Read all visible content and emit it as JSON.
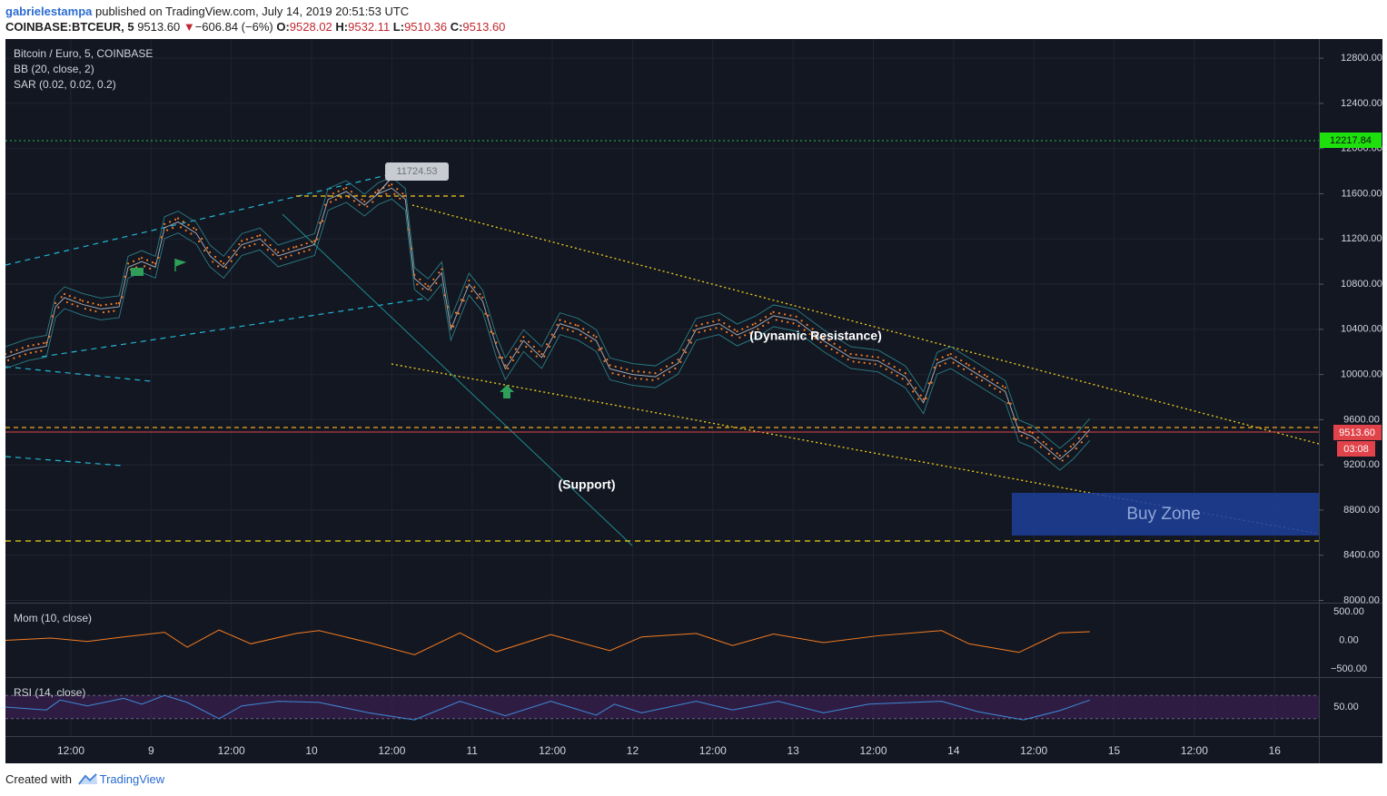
{
  "header": {
    "author": "gabrielestampa",
    "published_text": " published on TradingView.com, July 14, 2019 20:51:53 UTC",
    "symbol": "COINBASE:BTCEUR, 5",
    "last_price": "9513.60",
    "change_arrow": "▼",
    "change": "−606.84 (−6%)",
    "o_label": "O:",
    "o_value": "9528.02",
    "h_label": "H:",
    "h_value": "9532.11",
    "l_label": "L:",
    "l_value": "9510.36",
    "c_label": "C:",
    "c_value": "9513.60"
  },
  "legend": {
    "instrument": "Bitcoin / Euro, 5, COINBASE",
    "bb": "BB (20, close, 2)",
    "sar": "SAR (0.02, 0.02, 0.2)",
    "mom": "Mom (10, close)",
    "rsi": "RSI (14, close)"
  },
  "annotations": {
    "high_callout": "11724.53",
    "dynamic_resistance": "(Dynamic Resistance)",
    "support": "(Support)",
    "buy_zone": "Buy Zone"
  },
  "price_tags": {
    "green_level": "12217.84",
    "current": "9513.60",
    "countdown": "03:08"
  },
  "footer": {
    "created_with": "Created with",
    "brand": "TradingView"
  },
  "colors": {
    "background": "#131722",
    "orange": "#f57c20",
    "yellow": "#f2d218",
    "cyan": "#22b8d4",
    "green_tag": "#1de00d",
    "red_tag": "#e0444a",
    "buy_zone": "#1f3f9a",
    "rsi_band": "#3a1f4f",
    "rsi_line": "#3d8bd6"
  },
  "chart_data": {
    "type": "line",
    "x_tick_labels": [
      "12:00",
      "9",
      "12:00",
      "10",
      "12:00",
      "11",
      "12:00",
      "12",
      "12:00",
      "13",
      "12:00",
      "14",
      "12:00",
      "15",
      "12:00",
      "16"
    ],
    "price_axis_labels": [
      "12800.00",
      "12400.00",
      "12000.00",
      "11600.00",
      "11200.00",
      "10800.00",
      "10400.00",
      "10000.00",
      "9600.00",
      "9200.00",
      "8800.00",
      "8400.00",
      "8000.00"
    ],
    "ylim": [
      7980,
      12970
    ],
    "x_range": [
      0,
      1445
    ],
    "price_series": {
      "x": [
        0,
        25,
        45,
        55,
        65,
        85,
        105,
        125,
        135,
        150,
        165,
        175,
        190,
        210,
        225,
        240,
        260,
        280,
        300,
        320,
        340,
        355,
        375,
        395,
        410,
        425,
        440,
        450,
        465,
        480,
        490,
        510,
        525,
        540,
        550,
        570,
        590,
        610,
        630,
        650,
        665,
        690,
        715,
        740,
        760,
        785,
        805,
        825,
        845,
        870,
        900,
        930,
        960,
        990,
        1010,
        1025,
        1040,
        1060,
        1080,
        1100,
        1115,
        1130,
        1145,
        1160,
        1175,
        1193
      ],
      "y": [
        10150,
        10220,
        10250,
        10600,
        10680,
        10620,
        10580,
        10600,
        10950,
        11000,
        10950,
        11300,
        11350,
        11250,
        11050,
        10950,
        11150,
        11200,
        11050,
        11100,
        11150,
        11550,
        11620,
        11500,
        11600,
        11650,
        11550,
        10850,
        10750,
        10900,
        10400,
        10800,
        10650,
        10250,
        10050,
        10300,
        10150,
        10450,
        10400,
        10300,
        10050,
        10000,
        9980,
        10100,
        10400,
        10450,
        10350,
        10420,
        10520,
        10480,
        10300,
        10150,
        10120,
        9980,
        9750,
        10100,
        10150,
        10050,
        9950,
        9850,
        9500,
        9450,
        9350,
        9250,
        9350,
        9513.6
      ]
    },
    "momentum_axis_labels": [
      "500.00",
      "0.00",
      "−500.00"
    ],
    "momentum_ylim": [
      -640,
      640
    ],
    "momentum_series": {
      "x": [
        0,
        50,
        90,
        130,
        175,
        200,
        235,
        270,
        320,
        345,
        400,
        450,
        500,
        540,
        600,
        665,
        700,
        760,
        800,
        845,
        900,
        960,
        1030,
        1060,
        1115,
        1160,
        1193
      ],
      "y": [
        0,
        40,
        -20,
        60,
        140,
        -120,
        180,
        -60,
        120,
        170,
        -40,
        -250,
        130,
        -200,
        100,
        -180,
        60,
        120,
        -90,
        110,
        -40,
        80,
        170,
        -60,
        -210,
        130,
        150
      ]
    },
    "rsi_axis_labels": [
      "50.00"
    ],
    "rsi_ylim": [
      0,
      100
    ],
    "rsi_band": [
      30,
      70
    ],
    "rsi_series": {
      "x": [
        0,
        45,
        60,
        90,
        130,
        150,
        175,
        200,
        235,
        260,
        300,
        345,
        400,
        450,
        500,
        550,
        600,
        650,
        670,
        700,
        760,
        800,
        850,
        900,
        950,
        1030,
        1070,
        1120,
        1160,
        1193
      ],
      "y": [
        50,
        45,
        62,
        52,
        65,
        55,
        70,
        58,
        30,
        52,
        60,
        58,
        40,
        28,
        60,
        35,
        60,
        36,
        55,
        40,
        60,
        45,
        60,
        40,
        55,
        60,
        42,
        28,
        44,
        62
      ]
    },
    "levels": {
      "green_dotted": 12217.84,
      "orange_dashed": 9555,
      "red_current": 9513.6,
      "yellow_bottom": 8520,
      "high_dashed": 11700
    }
  }
}
